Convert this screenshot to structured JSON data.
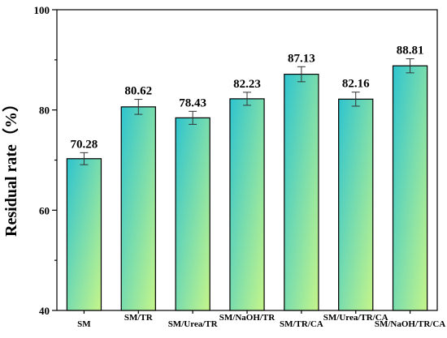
{
  "chart_data": {
    "type": "bar",
    "categories": [
      "SM",
      "SM/TR",
      "SM/Urea/TR",
      "SM/NaOH/TR",
      "SM/TR/CA",
      "SM/Urea/TR/CA",
      "SM/NaOH/TR/CA"
    ],
    "values": [
      70.28,
      80.62,
      78.43,
      82.23,
      87.13,
      82.16,
      88.81
    ],
    "value_labels": [
      "70.28",
      "80.62",
      "78.43",
      "82.23",
      "87.13",
      "82.16",
      "88.81"
    ],
    "errors": [
      1.2,
      1.5,
      1.3,
      1.3,
      1.5,
      1.4,
      1.4
    ],
    "ylabel": "Residual rate（%）",
    "xlabel": "",
    "ylim": [
      40,
      100
    ],
    "yticks": [
      40,
      60,
      80,
      100
    ],
    "grid": false,
    "bar_gradient": [
      "#2ec4cf",
      "#c6f58a"
    ],
    "bar_outline": "#000000"
  }
}
